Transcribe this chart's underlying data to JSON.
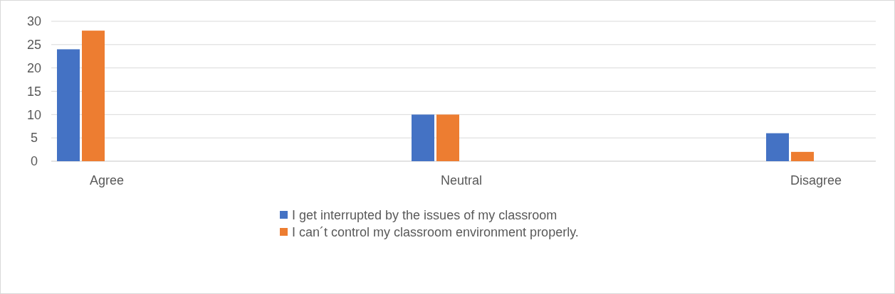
{
  "chart_data": {
    "type": "bar",
    "categories": [
      "Agree",
      "Neutral",
      "Disagree"
    ],
    "series": [
      {
        "name": "I get interrupted by the issues of my classroom",
        "color": "#4472c4",
        "values": [
          24,
          10,
          6
        ]
      },
      {
        "name": "I can´t control my classroom environment properly.",
        "color": "#ed7d31",
        "values": [
          28,
          10,
          2
        ]
      }
    ],
    "ylim": [
      0,
      30
    ],
    "yticks": [
      0,
      5,
      10,
      15,
      20,
      25,
      30
    ],
    "grid": "y",
    "legend": "bottom"
  }
}
